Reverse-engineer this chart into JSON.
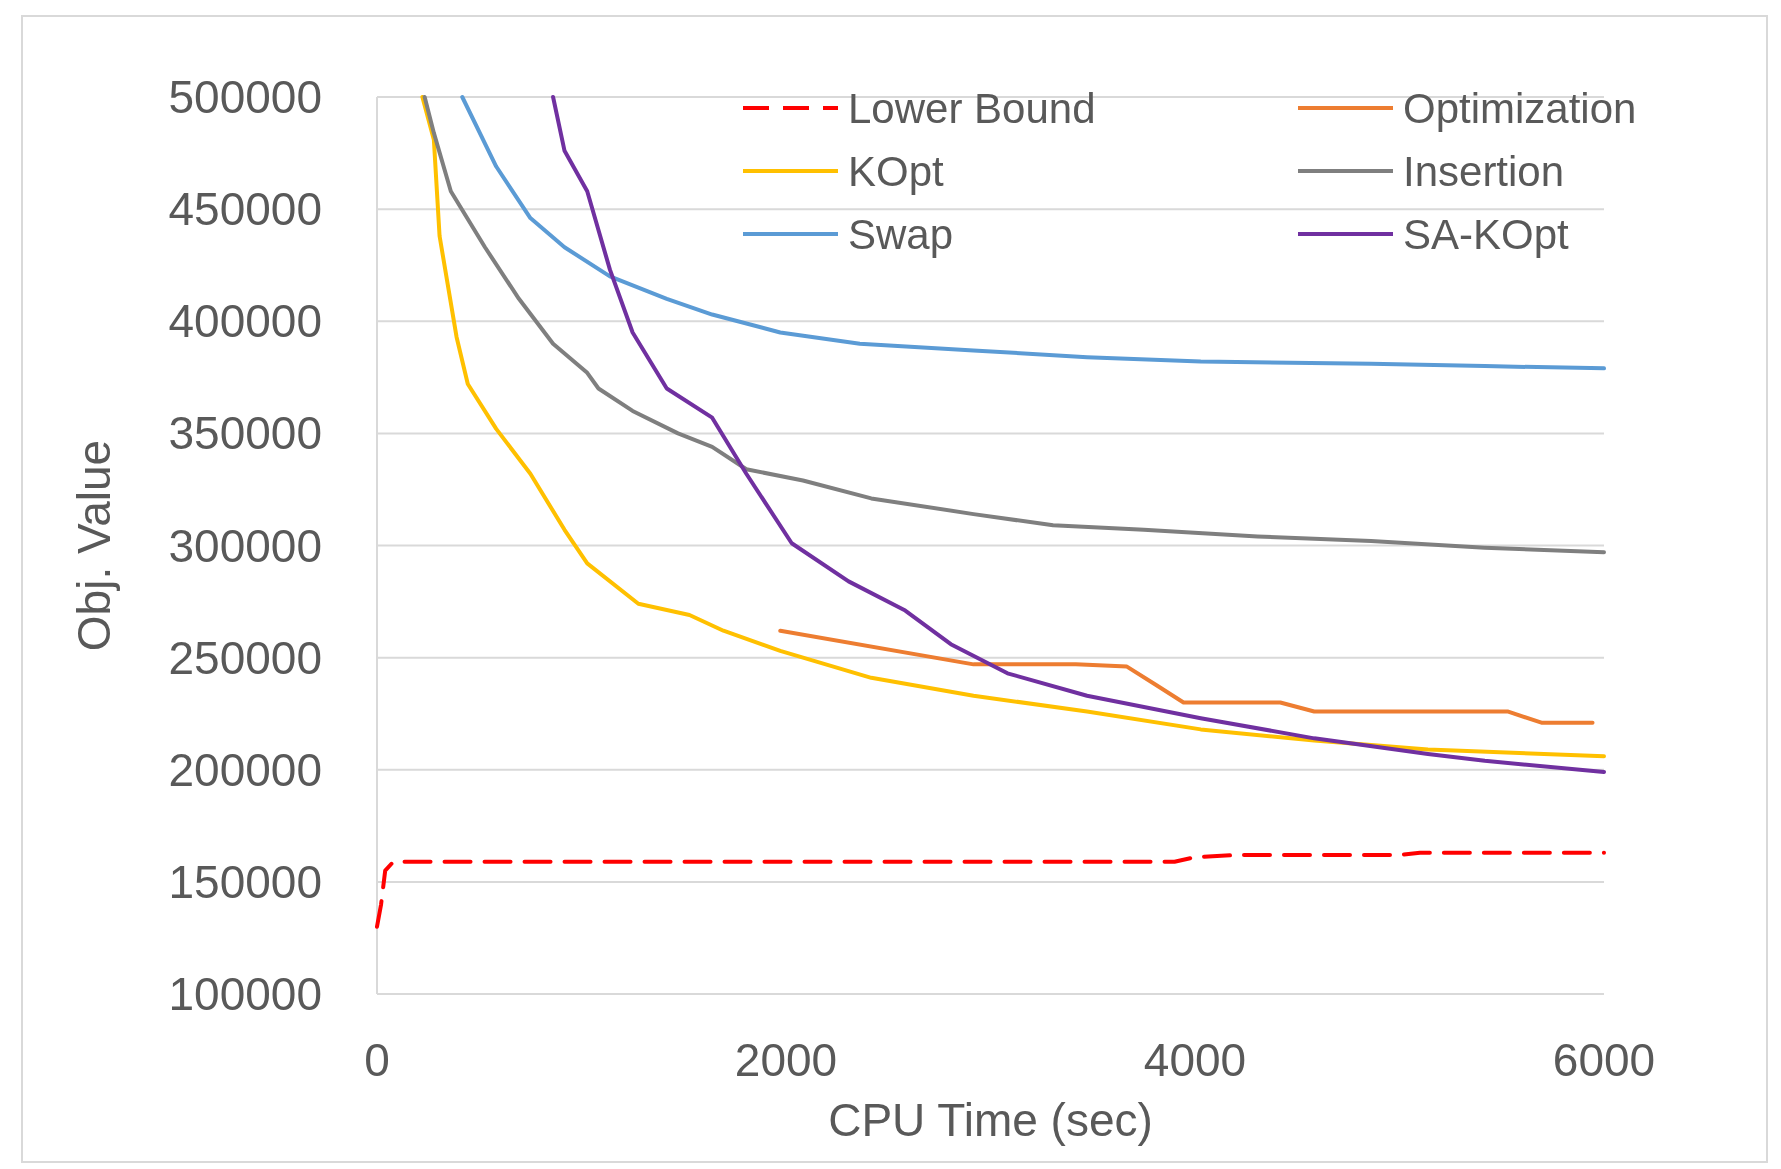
{
  "chart_data": {
    "type": "line",
    "xlabel": "CPU Time (sec)",
    "ylabel": "Obj. Value",
    "xlim": [
      0,
      6000
    ],
    "ylim": [
      100000,
      500000
    ],
    "xticks": [
      0,
      2000,
      4000,
      6000
    ],
    "yticks": [
      100000,
      150000,
      200000,
      250000,
      300000,
      350000,
      400000,
      450000,
      500000
    ],
    "grid": "y",
    "legend": "top right",
    "marker": "none",
    "line_style": "solid",
    "series": [
      {
        "name": "Lower Bound",
        "color": "#ff0000",
        "line_style": "dashed",
        "x": [
          0,
          20,
          40,
          80,
          3900,
          4000,
          4200,
          5000,
          5100,
          6000
        ],
        "values": [
          130000,
          140000,
          155000,
          159000,
          159000,
          161000,
          162000,
          162000,
          163000,
          163000
        ]
      },
      {
        "name": "Optimization",
        "color": "#ed7d31",
        "x": [
          1972,
          2917,
          3417,
          3667,
          3806,
          3944,
          4417,
          4583,
          5528,
          5694,
          5944
        ],
        "values": [
          262000,
          247000,
          247000,
          246000,
          238000,
          230000,
          230000,
          226000,
          226000,
          221000,
          221000
        ]
      },
      {
        "name": "KOpt",
        "color": "#ffc000",
        "x": [
          222,
          278,
          306,
          389,
          444,
          583,
          750,
          917,
          1028,
          1278,
          1528,
          1694,
          1972,
          2417,
          2917,
          3472,
          4028,
          4583,
          5139,
          6000
        ],
        "values": [
          500000,
          481000,
          438000,
          393000,
          372000,
          352000,
          332000,
          307000,
          292000,
          274000,
          269000,
          262000,
          253000,
          241000,
          233000,
          226000,
          218000,
          213000,
          209000,
          206000
        ]
      },
      {
        "name": "Insertion",
        "color": "#7f7f7f",
        "x": [
          233,
          278,
          361,
          528,
          694,
          861,
          1028,
          1083,
          1250,
          1472,
          1639,
          1806,
          2083,
          2417,
          2917,
          3306,
          3750,
          4306,
          4861,
          5417,
          6000
        ],
        "values": [
          500000,
          484000,
          458000,
          433000,
          410000,
          390000,
          377000,
          370000,
          360000,
          350000,
          344000,
          334000,
          329000,
          321000,
          314000,
          309000,
          307000,
          304000,
          302000,
          299000,
          297000
        ]
      },
      {
        "name": "Swap",
        "color": "#5b9bd5",
        "x": [
          417,
          583,
          750,
          917,
          1139,
          1417,
          1639,
          1972,
          2361,
          2917,
          3472,
          4028,
          4861,
          5417,
          6000
        ],
        "values": [
          500000,
          469000,
          446000,
          433000,
          420000,
          410000,
          403000,
          395000,
          390000,
          387000,
          384000,
          382000,
          381000,
          380000,
          379000
        ]
      },
      {
        "name": "SA-KOpt",
        "color": "#7030a0",
        "x": [
          861,
          917,
          1028,
          1139,
          1250,
          1417,
          1639,
          1806,
          2028,
          2306,
          2583,
          2806,
          3083,
          3472,
          4028,
          4583,
          5139,
          5417,
          6000
        ],
        "values": [
          500000,
          476000,
          458000,
          423000,
          395000,
          370000,
          357000,
          332000,
          301000,
          284000,
          271000,
          256000,
          243000,
          233000,
          223000,
          214000,
          207000,
          204000,
          199000
        ]
      }
    ]
  }
}
